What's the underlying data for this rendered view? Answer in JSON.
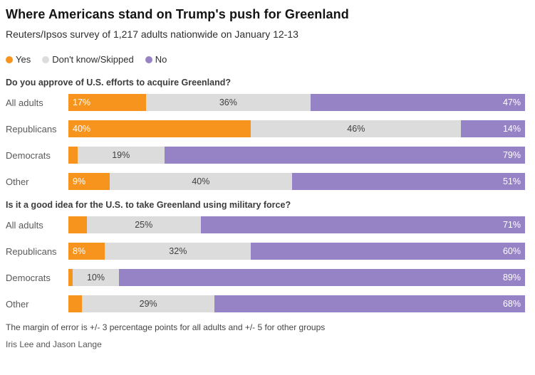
{
  "page": {
    "title": "Where Americans stand on Trump's push for Greenland",
    "subtitle": "Reuters/Ipsos survey of 1,217 adults nationwide on January 12-13",
    "footnote": "The margin of error is +/- 3 percentage points for all adults and +/- 5 for other groups",
    "byline": "Iris Lee and Jason Lange"
  },
  "colors": {
    "yes": "#f7941e",
    "dont_know": "#dcdcdc",
    "no": "#9583c5"
  },
  "legend": [
    {
      "label": "Yes",
      "color": "#f7941e"
    },
    {
      "label": "Don't know/Skipped",
      "color": "#dcdcdc"
    },
    {
      "label": "No",
      "color": "#9583c5"
    }
  ],
  "chart_data": [
    {
      "type": "bar",
      "orientation": "horizontal",
      "stacked": true,
      "title": "Do you approve of U.S. efforts to acquire Greenland?",
      "categories": [
        "All adults",
        "Republicans",
        "Democrats",
        "Other"
      ],
      "xlim": [
        0,
        100
      ],
      "grid": false,
      "series": [
        {
          "name": "Yes",
          "color": "#f7941e",
          "values": [
            17,
            40,
            2,
            9
          ],
          "labels": [
            "17%",
            "40%",
            "",
            "9%"
          ]
        },
        {
          "name": "Don't know/Skipped",
          "color": "#dcdcdc",
          "values": [
            36,
            46,
            19,
            40
          ],
          "labels": [
            "36%",
            "46%",
            "19%",
            "40%"
          ]
        },
        {
          "name": "No",
          "color": "#9583c5",
          "values": [
            47,
            14,
            79,
            51
          ],
          "labels": [
            "47%",
            "14%",
            "79%",
            "51%"
          ]
        }
      ]
    },
    {
      "type": "bar",
      "orientation": "horizontal",
      "stacked": true,
      "title": "Is it a good idea for the U.S. to take Greenland using military force?",
      "categories": [
        "All adults",
        "Republicans",
        "Democrats",
        "Other"
      ],
      "xlim": [
        0,
        100
      ],
      "grid": false,
      "series": [
        {
          "name": "Yes",
          "color": "#f7941e",
          "values": [
            4,
            8,
            1,
            3
          ],
          "labels": [
            "",
            "8%",
            "",
            ""
          ]
        },
        {
          "name": "Don't know/Skipped",
          "color": "#dcdcdc",
          "values": [
            25,
            32,
            10,
            29
          ],
          "labels": [
            "25%",
            "32%",
            "10%",
            "29%"
          ]
        },
        {
          "name": "No",
          "color": "#9583c5",
          "values": [
            71,
            60,
            89,
            68
          ],
          "labels": [
            "71%",
            "60%",
            "89%",
            "68%"
          ]
        }
      ]
    }
  ]
}
